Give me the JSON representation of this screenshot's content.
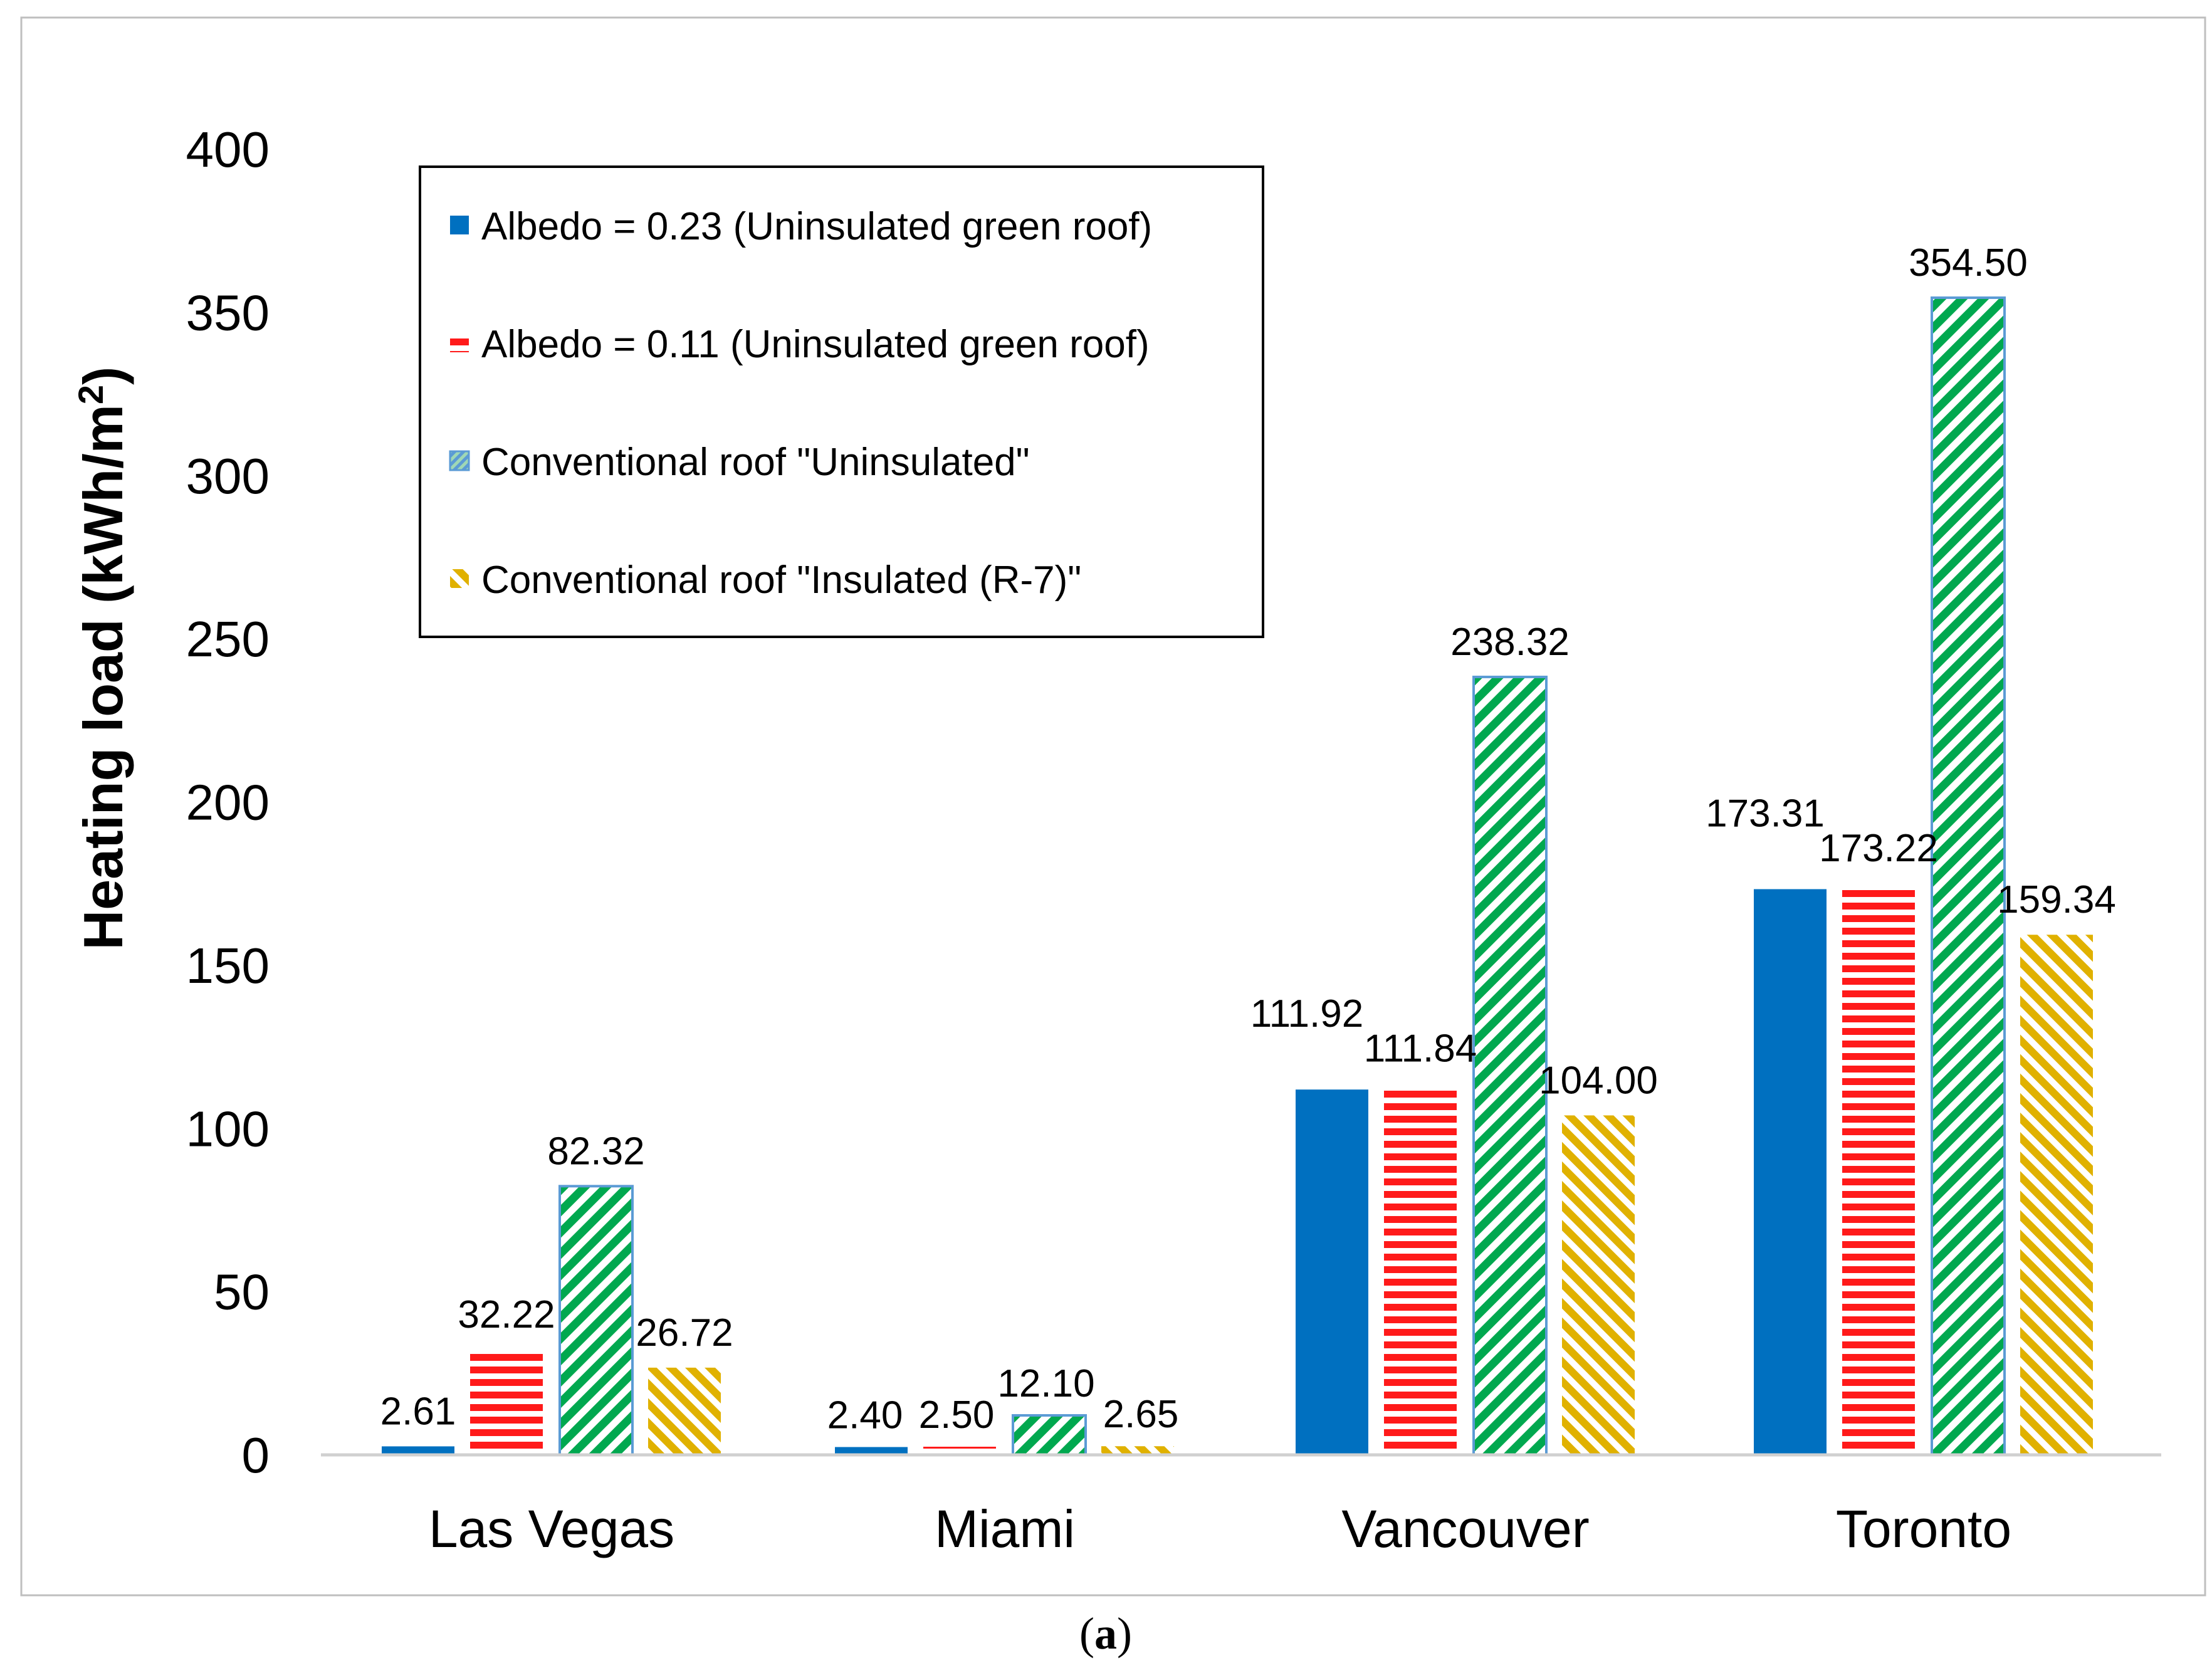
{
  "chart_data": {
    "type": "bar",
    "title": "",
    "xlabel": "",
    "ylabel": "Heating load (kWh/m2)",
    "ylabel_main": "Heating load (kWh/m",
    "ylabel_sup": "2",
    "ylabel_close": ")",
    "ylim": [
      0,
      400
    ],
    "yticks": [
      0,
      50,
      100,
      150,
      200,
      250,
      300,
      350,
      400
    ],
    "categories": [
      "Las Vegas",
      "Miami",
      "Vancouver",
      "Toronto"
    ],
    "legend_position": "top-left",
    "grid": false,
    "series": [
      {
        "name": "Albedo = 0.23 (Uninsulated green roof)",
        "pattern": "solid",
        "color": "#0070C0",
        "values": [
          2.61,
          2.4,
          111.92,
          173.31
        ],
        "labels": [
          "2.61",
          "2.40",
          "111.92",
          "173.31"
        ]
      },
      {
        "name": "Albedo = 0.11 (Uninsulated green roof)",
        "pattern": "horizontal-stripes",
        "color": "#FF0000",
        "values": [
          32.22,
          2.5,
          111.84,
          173.22
        ],
        "labels": [
          "32.22",
          "2.50",
          "111.84",
          "173.22"
        ]
      },
      {
        "name": "Conventional roof \"Uninsulated\"",
        "pattern": "diagonal-stripes",
        "color": "#00B050",
        "border": "#5B9BD5",
        "values": [
          82.32,
          12.1,
          238.32,
          354.5
        ],
        "labels": [
          "82.32",
          "12.10",
          "238.32",
          "354.50"
        ]
      },
      {
        "name": "Conventional roof \"Insulated (R-7)\"",
        "pattern": "diagonal-stripes",
        "color": "#E6B800",
        "values": [
          26.72,
          2.65,
          104.0,
          159.34
        ],
        "labels": [
          "26.72",
          "2.65",
          "104.00",
          "159.34"
        ]
      }
    ]
  },
  "caption": {
    "open": "(",
    "letter": "a",
    "close": ")"
  }
}
